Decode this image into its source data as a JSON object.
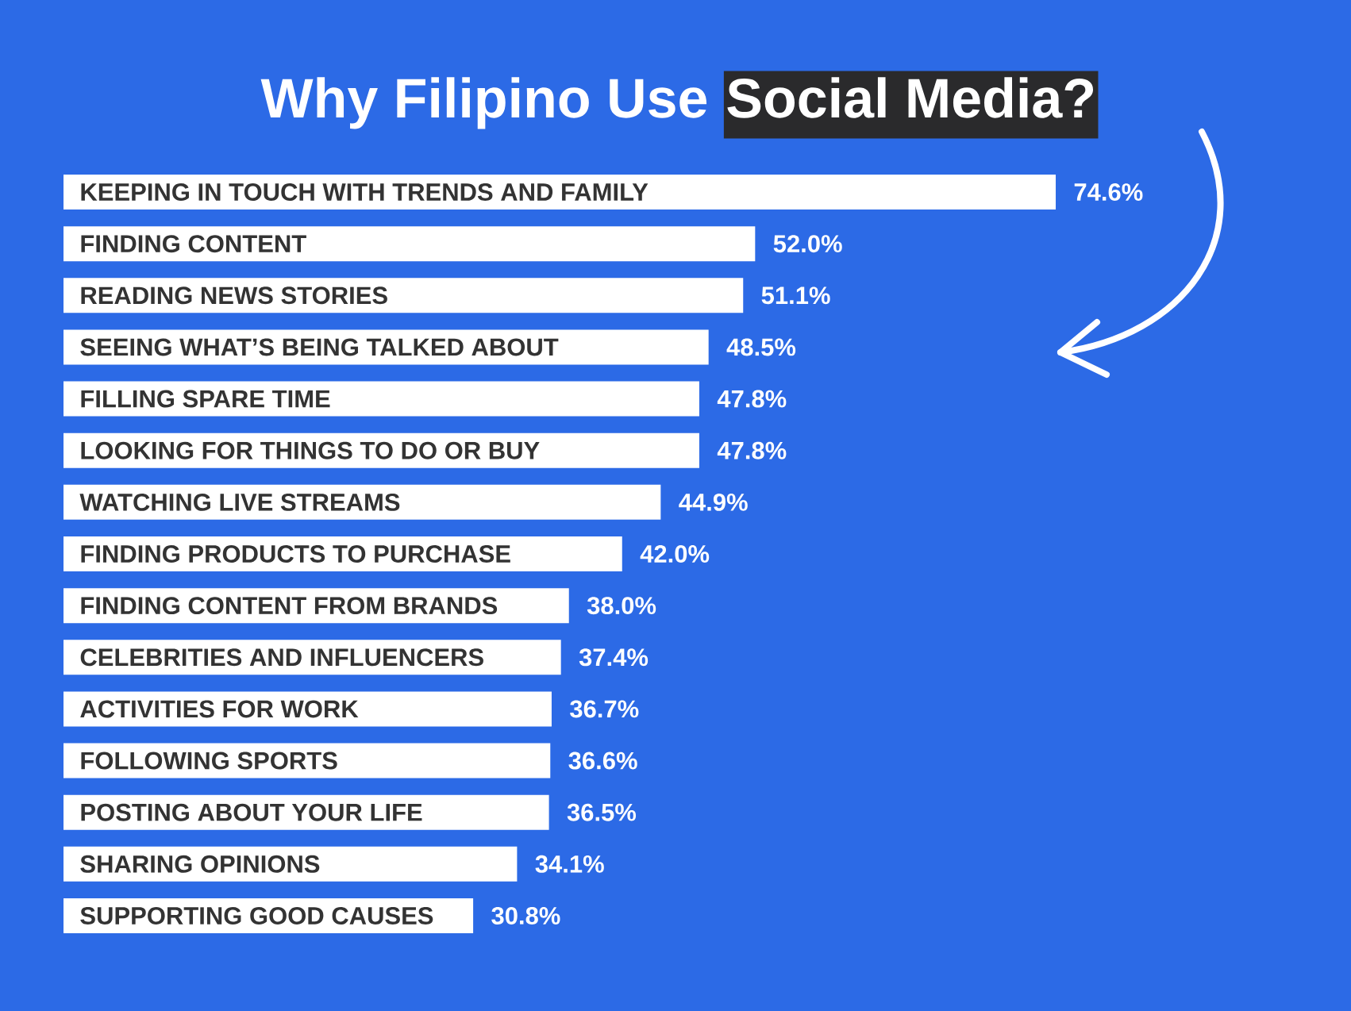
{
  "chart_data": {
    "type": "bar",
    "orientation": "horizontal",
    "title": "Why Filipino Use **Social Media?**",
    "categories": [
      "KEEPING IN TOUCH WITH TRENDS AND FAMILY",
      "FINDING CONTENT",
      "READING NEWS STORIES",
      "SEEING WHAT’S BEING TALKED ABOUT",
      "FILLING SPARE TIME",
      "LOOKING FOR THINGS TO DO OR BUY",
      "WATCHING LIVE STREAMS",
      "FINDING PRODUCTS TO PURCHASE",
      "FINDING CONTENT FROM BRANDS",
      "CELEBRITIES AND INFLUENCERS",
      "ACTIVITIES FOR WORK",
      "FOLLOWING SPORTS",
      "POSTING ABOUT YOUR LIFE",
      "SHARING OPINIONS",
      "SUPPORTING GOOD CAUSES"
    ],
    "values": [
      74.6,
      52.0,
      51.1,
      48.5,
      47.8,
      47.8,
      44.9,
      42.0,
      38.0,
      37.4,
      36.7,
      36.6,
      36.5,
      34.1,
      30.8
    ],
    "value_labels": [
      "74.6%",
      "52.0%",
      "51.1%",
      "48.5%",
      "47.8%",
      "47.8%",
      "44.9%",
      "42.0%",
      "38.0%",
      "37.4%",
      "36.7%",
      "36.6%",
      "36.5%",
      "34.1%",
      "30.8%"
    ],
    "color": "#ffffff"
  }
}
